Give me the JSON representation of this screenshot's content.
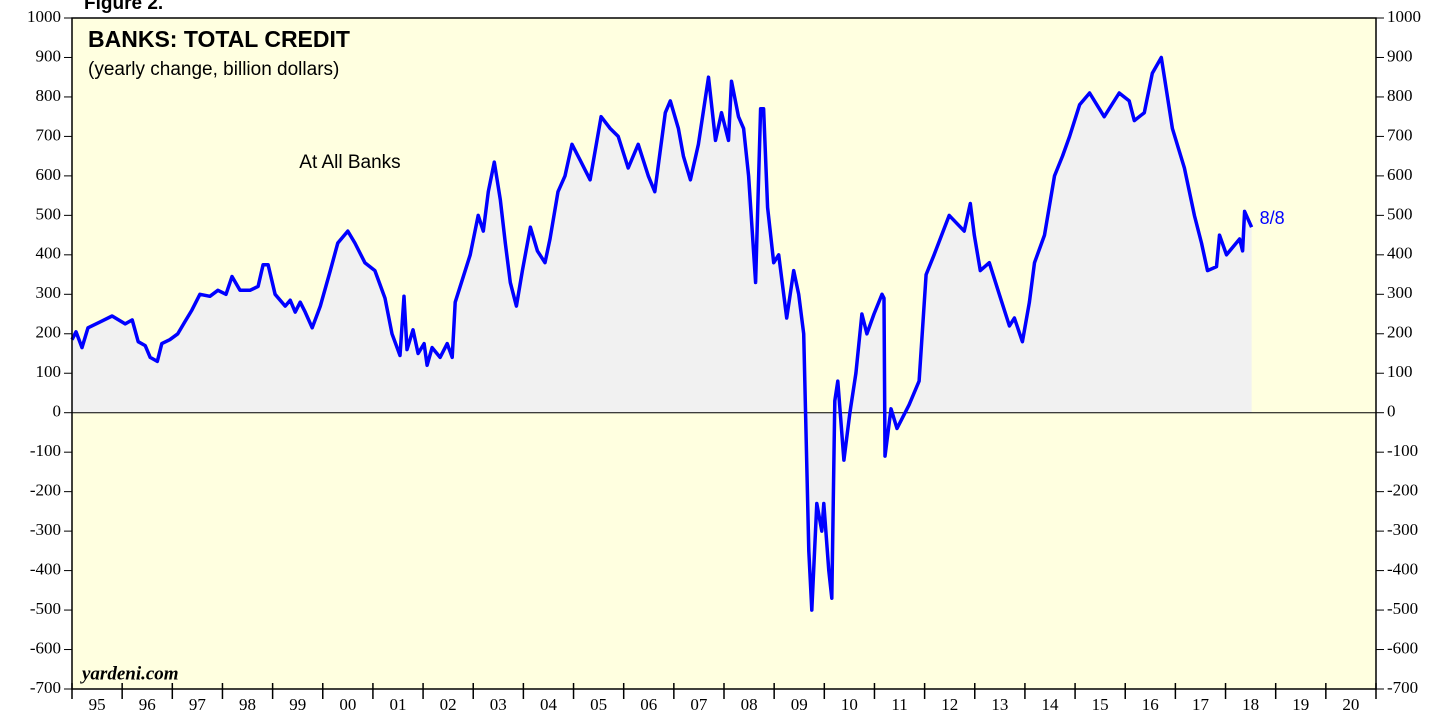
{
  "figure_label": "Figure 2.",
  "chart_data": {
    "type": "line",
    "title": "BANKS: TOTAL CREDIT",
    "subtitle": "(yearly change, billion dollars)",
    "annotation": "At All Banks",
    "end_label": "8/8",
    "source": "yardeni.com",
    "background": "#ffffe0",
    "area_color": "#f1f1f1",
    "ylim": [
      -700,
      1000
    ],
    "yticks": [
      -700,
      -600,
      -500,
      -400,
      -300,
      -200,
      -100,
      0,
      100,
      200,
      300,
      400,
      500,
      600,
      700,
      800,
      900,
      1000
    ],
    "xlim": [
      1995,
      2021
    ],
    "xticks": [
      {
        "value": 1995.5,
        "label": "95"
      },
      {
        "value": 1996.5,
        "label": "96"
      },
      {
        "value": 1997.5,
        "label": "97"
      },
      {
        "value": 1998.5,
        "label": "98"
      },
      {
        "value": 1999.5,
        "label": "99"
      },
      {
        "value": 2000.5,
        "label": "00"
      },
      {
        "value": 2001.5,
        "label": "01"
      },
      {
        "value": 2002.5,
        "label": "02"
      },
      {
        "value": 2003.5,
        "label": "03"
      },
      {
        "value": 2004.5,
        "label": "04"
      },
      {
        "value": 2005.5,
        "label": "05"
      },
      {
        "value": 2006.5,
        "label": "06"
      },
      {
        "value": 2007.5,
        "label": "07"
      },
      {
        "value": 2008.5,
        "label": "08"
      },
      {
        "value": 2009.5,
        "label": "09"
      },
      {
        "value": 2010.5,
        "label": "10"
      },
      {
        "value": 2011.5,
        "label": "11"
      },
      {
        "value": 2012.5,
        "label": "12"
      },
      {
        "value": 2013.5,
        "label": "13"
      },
      {
        "value": 2014.5,
        "label": "14"
      },
      {
        "value": 2015.5,
        "label": "15"
      },
      {
        "value": 2016.5,
        "label": "16"
      },
      {
        "value": 2017.5,
        "label": "17"
      },
      {
        "value": 2018.5,
        "label": "18"
      },
      {
        "value": 2019.5,
        "label": "19"
      },
      {
        "value": 2020.5,
        "label": "20"
      }
    ],
    "x": [
      1995.0,
      1995.08,
      1995.2,
      1995.32,
      1995.56,
      1995.8,
      1996.06,
      1996.2,
      1996.32,
      1996.46,
      1996.56,
      1996.7,
      1996.79,
      1996.95,
      1997.11,
      1997.25,
      1997.39,
      1997.55,
      1997.75,
      1997.91,
      1998.07,
      1998.19,
      1998.35,
      1998.55,
      1998.71,
      1998.81,
      1998.91,
      1999.05,
      1999.25,
      1999.35,
      1999.45,
      1999.55,
      1999.65,
      1999.79,
      1999.95,
      2000.15,
      2000.3,
      2000.5,
      2000.64,
      2000.84,
      2001.04,
      2001.24,
      2001.38,
      2001.54,
      2001.62,
      2001.68,
      2001.8,
      2001.9,
      2002.02,
      2002.08,
      2002.18,
      2002.34,
      2002.48,
      2002.58,
      2002.64,
      2002.94,
      2003.1,
      2003.2,
      2003.3,
      2003.42,
      2003.54,
      2003.64,
      2003.74,
      2003.86,
      2003.98,
      2004.14,
      2004.28,
      2004.43,
      2004.53,
      2004.69,
      2004.83,
      2004.97,
      2005.13,
      2005.33,
      2005.55,
      2005.73,
      2005.89,
      2006.09,
      2006.29,
      2006.49,
      2006.62,
      2006.83,
      2006.93,
      2007.09,
      2007.19,
      2007.33,
      2007.49,
      2007.69,
      2007.83,
      2007.95,
      2008.09,
      2008.15,
      2008.29,
      2008.39,
      2008.49,
      2008.63,
      2008.73,
      2008.79,
      2008.87,
      2008.99,
      2009.09,
      2009.25,
      2009.39,
      2009.49,
      2009.59,
      2009.69,
      2009.75,
      2009.85,
      2009.95,
      2009.99,
      2010.09,
      2010.15,
      2010.21,
      2010.27,
      2010.39,
      2010.51,
      2010.63,
      2010.75,
      2010.85,
      2010.99,
      2011.15,
      2011.19,
      2011.21,
      2011.33,
      2011.45,
      2011.69,
      2011.89,
      2012.03,
      2012.19,
      2012.49,
      2012.79,
      2012.91,
      2012.99,
      2013.11,
      2013.29,
      2013.49,
      2013.69,
      2013.79,
      2013.95,
      2014.09,
      2014.19,
      2014.39,
      2014.59,
      2014.75,
      2014.89,
      2015.09,
      2015.29,
      2015.58,
      2015.88,
      2016.08,
      2016.18,
      2016.38,
      2016.54,
      2016.72,
      2016.78,
      2016.94,
      2017.18,
      2017.38,
      2017.52,
      2017.64,
      2017.82,
      2017.88,
      2018.02,
      2018.28,
      2018.34,
      2018.38,
      2018.52
    ],
    "series": [
      {
        "name": "At All Banks",
        "color": "#0000ff",
        "values": [
          185,
          205,
          165,
          215,
          230,
          245,
          225,
          235,
          180,
          170,
          140,
          130,
          175,
          185,
          200,
          230,
          260,
          300,
          295,
          310,
          300,
          345,
          310,
          310,
          320,
          375,
          375,
          300,
          270,
          285,
          255,
          280,
          255,
          215,
          270,
          360,
          430,
          460,
          430,
          380,
          360,
          290,
          200,
          145,
          295,
          160,
          210,
          150,
          175,
          120,
          165,
          140,
          175,
          140,
          280,
          400,
          500,
          460,
          560,
          635,
          540,
          430,
          330,
          270,
          360,
          470,
          410,
          380,
          440,
          560,
          600,
          680,
          640,
          590,
          750,
          720,
          700,
          620,
          680,
          600,
          560,
          760,
          790,
          720,
          650,
          590,
          680,
          850,
          690,
          760,
          690,
          840,
          750,
          720,
          600,
          330,
          770,
          770,
          520,
          380,
          400,
          240,
          360,
          300,
          200,
          -350,
          -500,
          -230,
          -300,
          -230,
          -400,
          -470,
          30,
          80,
          -120,
          0,
          100,
          250,
          200,
          250,
          300,
          290,
          -110,
          10,
          -40,
          20,
          80,
          350,
          400,
          500,
          460,
          530,
          450,
          360,
          380,
          300,
          220,
          240,
          180,
          280,
          380,
          450,
          600,
          650,
          700,
          780,
          810,
          750,
          810,
          790,
          740,
          760,
          860,
          900,
          850,
          720,
          620,
          500,
          430,
          360,
          370,
          450,
          400,
          440,
          410,
          510,
          470
        ]
      }
    ]
  }
}
